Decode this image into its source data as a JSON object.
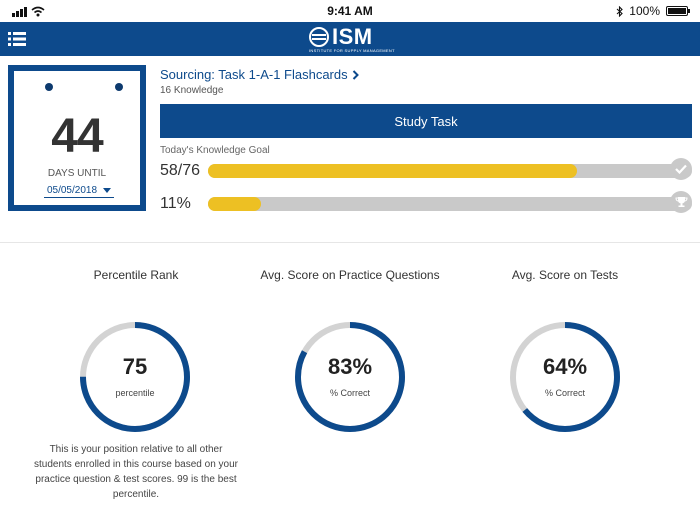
{
  "status_bar": {
    "time": "9:41 AM",
    "battery": "100%"
  },
  "header": {
    "logo_text": "ISM",
    "logo_subtitle": "INSTITUTE FOR SUPPLY MANAGEMENT"
  },
  "countdown": {
    "days": "44",
    "label": "DAYS UNTIL",
    "date": "05/05/2018"
  },
  "task": {
    "title": "Sourcing: Task 1-A-1 Flashcards",
    "subtitle": "16 Knowledge",
    "button_label": "Study Task",
    "goal_label": "Today's Knowledge Goal",
    "knowledge_progress_text": "58/76",
    "knowledge_done": 58,
    "knowledge_total": 76,
    "overall_progress_text": "11%",
    "overall_percent": 11
  },
  "stats": [
    {
      "title": "Percentile Rank",
      "value": "75",
      "sub": "percentile",
      "percent": 75
    },
    {
      "title": "Avg. Score on Practice Questions",
      "value": "83%",
      "sub": "% Correct",
      "percent": 83
    },
    {
      "title": "Avg. Score on Tests",
      "value": "64%",
      "sub": "% Correct",
      "percent": 64
    }
  ],
  "percentile_description": "This is your position relative to all other students enrolled in this course based on your practice question & test scores. 99 is the best percentile.",
  "colors": {
    "brand": "#0d4a8c",
    "progress": "#edc023",
    "track": "#c9c9c9",
    "ring_track": "#d3d3d3"
  }
}
